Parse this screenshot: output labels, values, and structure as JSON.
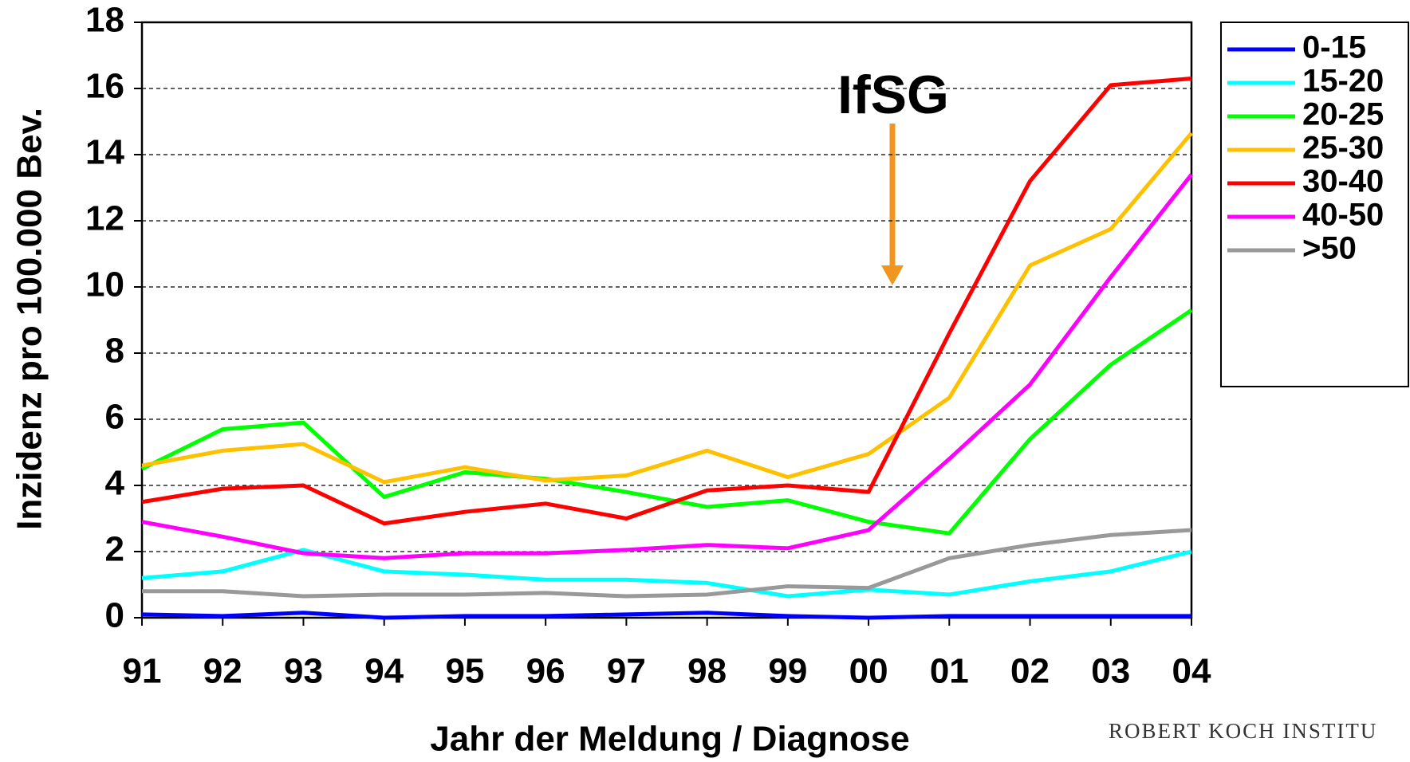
{
  "chart_data": {
    "type": "line",
    "x_label": "Jahr der Meldung / Diagnose",
    "y_label": "Inzidenz pro 100.000 Bev.",
    "annotation": "IfSG",
    "logo_text": "ROBERT KOCH INSTITU",
    "categories": [
      "91",
      "92",
      "93",
      "94",
      "95",
      "96",
      "97",
      "98",
      "99",
      "00",
      "01",
      "02",
      "03",
      "04"
    ],
    "ylim": [
      0,
      18
    ],
    "yticks": [
      0,
      2,
      4,
      6,
      8,
      10,
      12,
      14,
      16,
      18
    ],
    "grid": true,
    "legend": "right",
    "series": [
      {
        "name": "0-15",
        "color": "#0000ff",
        "values": [
          0.1,
          0.05,
          0.15,
          0,
          0.05,
          0.05,
          0.1,
          0.15,
          0.05,
          0,
          0.05,
          0.05,
          0.05,
          0.05
        ]
      },
      {
        "name": "15-20",
        "color": "#00ffff",
        "values": [
          1.2,
          1.4,
          2.05,
          1.4,
          1.3,
          1.15,
          1.15,
          1.05,
          0.65,
          0.85,
          0.7,
          1.1,
          1.4,
          2.0
        ]
      },
      {
        "name": "20-25",
        "color": "#00ff00",
        "values": [
          4.5,
          5.7,
          5.9,
          3.65,
          4.4,
          4.2,
          3.8,
          3.35,
          3.55,
          2.9,
          2.55,
          5.4,
          7.65,
          9.3
        ]
      },
      {
        "name": "25-30",
        "color": "#ffc000",
        "values": [
          4.6,
          5.05,
          5.25,
          4.1,
          4.55,
          4.15,
          4.3,
          5.05,
          4.25,
          4.95,
          6.65,
          10.65,
          11.75,
          14.65
        ]
      },
      {
        "name": "30-40",
        "color": "#ff0000",
        "values": [
          3.5,
          3.9,
          4.0,
          2.85,
          3.2,
          3.45,
          3.0,
          3.85,
          4.0,
          3.8,
          8.6,
          13.2,
          16.1,
          16.3
        ]
      },
      {
        "name": "40-50",
        "color": "#ff00ff",
        "values": [
          2.9,
          2.45,
          1.95,
          1.8,
          1.95,
          1.95,
          2.05,
          2.2,
          2.1,
          2.65,
          4.8,
          7.05,
          10.3,
          13.4
        ]
      },
      {
        "name": ">50",
        "color": "#999999",
        "values": [
          0.8,
          0.8,
          0.65,
          0.7,
          0.7,
          0.75,
          0.65,
          0.7,
          0.95,
          0.9,
          1.8,
          2.2,
          2.5,
          2.65
        ]
      }
    ]
  }
}
